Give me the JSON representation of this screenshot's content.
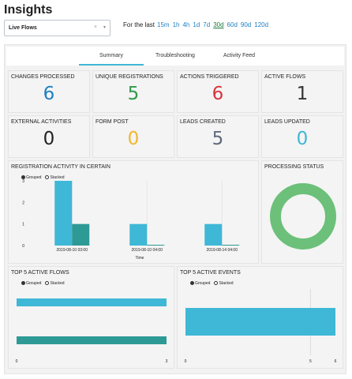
{
  "header": {
    "title": "Insights",
    "flow_select": {
      "value": "Live Flows",
      "clear_icon": "×",
      "caret_icon": "▾"
    },
    "for_last_label": "For the last",
    "ranges": [
      "15m",
      "1h",
      "4h",
      "1d",
      "7d",
      "30d",
      "60d",
      "90d",
      "120d"
    ],
    "active_range": "30d"
  },
  "tabs": [
    {
      "label": "Summary",
      "active": true
    },
    {
      "label": "Troubleshooting",
      "active": false
    },
    {
      "label": "Activity Feed",
      "active": false
    }
  ],
  "stats": [
    {
      "label": "CHANGES PROCESSED",
      "value": "6",
      "color": "#1f7fc2"
    },
    {
      "label": "UNIQUE REGISTRATIONS",
      "value": "5",
      "color": "#2e9a4a"
    },
    {
      "label": "ACTIONS TRIGGERED",
      "value": "6",
      "color": "#d9343b"
    },
    {
      "label": "ACTIVE FLOWS",
      "value": "1",
      "color": "#333333"
    },
    {
      "label": "EXTERNAL ACTIVITIES",
      "value": "0",
      "color": "#222222"
    },
    {
      "label": "FORM POST",
      "value": "0",
      "color": "#f2b632"
    },
    {
      "label": "LEADS CREATED",
      "value": "5",
      "color": "#5f6b7c"
    },
    {
      "label": "LEADS UPDATED",
      "value": "0",
      "color": "#3fb7d6"
    }
  ],
  "panels": {
    "registration": {
      "title": "REGISTRATION ACTIVITY IN CERTAIN",
      "xlabel": "Time"
    },
    "processing": {
      "title": "PROCESSING STATUS"
    },
    "flows": {
      "title": "TOP 5 ACTIVE FLOWS"
    },
    "events": {
      "title": "TOP 5 ACTIVE EVENTS"
    }
  },
  "legend": {
    "grouped": "Grouped",
    "stacked": "Stacked",
    "mode": "grouped"
  },
  "colors": {
    "series_a": "#3fb7d6",
    "series_b": "#2e9a96",
    "donut": "#6cc079"
  },
  "chart_data": [
    {
      "type": "bar",
      "categories": [
        "2019-08-10 03:00",
        "2019-08-10 04:00",
        "2019-08-14 04:00"
      ],
      "series": [
        {
          "values": [
            3,
            1,
            1
          ]
        },
        {
          "values": [
            1,
            0,
            0
          ]
        }
      ],
      "xlabel": "Time",
      "ylim": [
        0,
        3
      ],
      "yticks": [
        "0",
        "1",
        "2",
        "3"
      ]
    },
    {
      "type": "pie",
      "values": [
        1
      ],
      "donut": true
    },
    {
      "type": "bar",
      "orientation": "horizontal",
      "categories": [
        "",
        ""
      ],
      "values": [
        3,
        3
      ],
      "xlim": [
        0,
        3
      ],
      "xticks": [
        "0",
        "3"
      ]
    },
    {
      "type": "bar",
      "orientation": "horizontal",
      "categories": [
        ""
      ],
      "values": [
        6
      ],
      "xlim": [
        0,
        6
      ],
      "xticks": [
        "0",
        "5",
        "6"
      ]
    }
  ]
}
